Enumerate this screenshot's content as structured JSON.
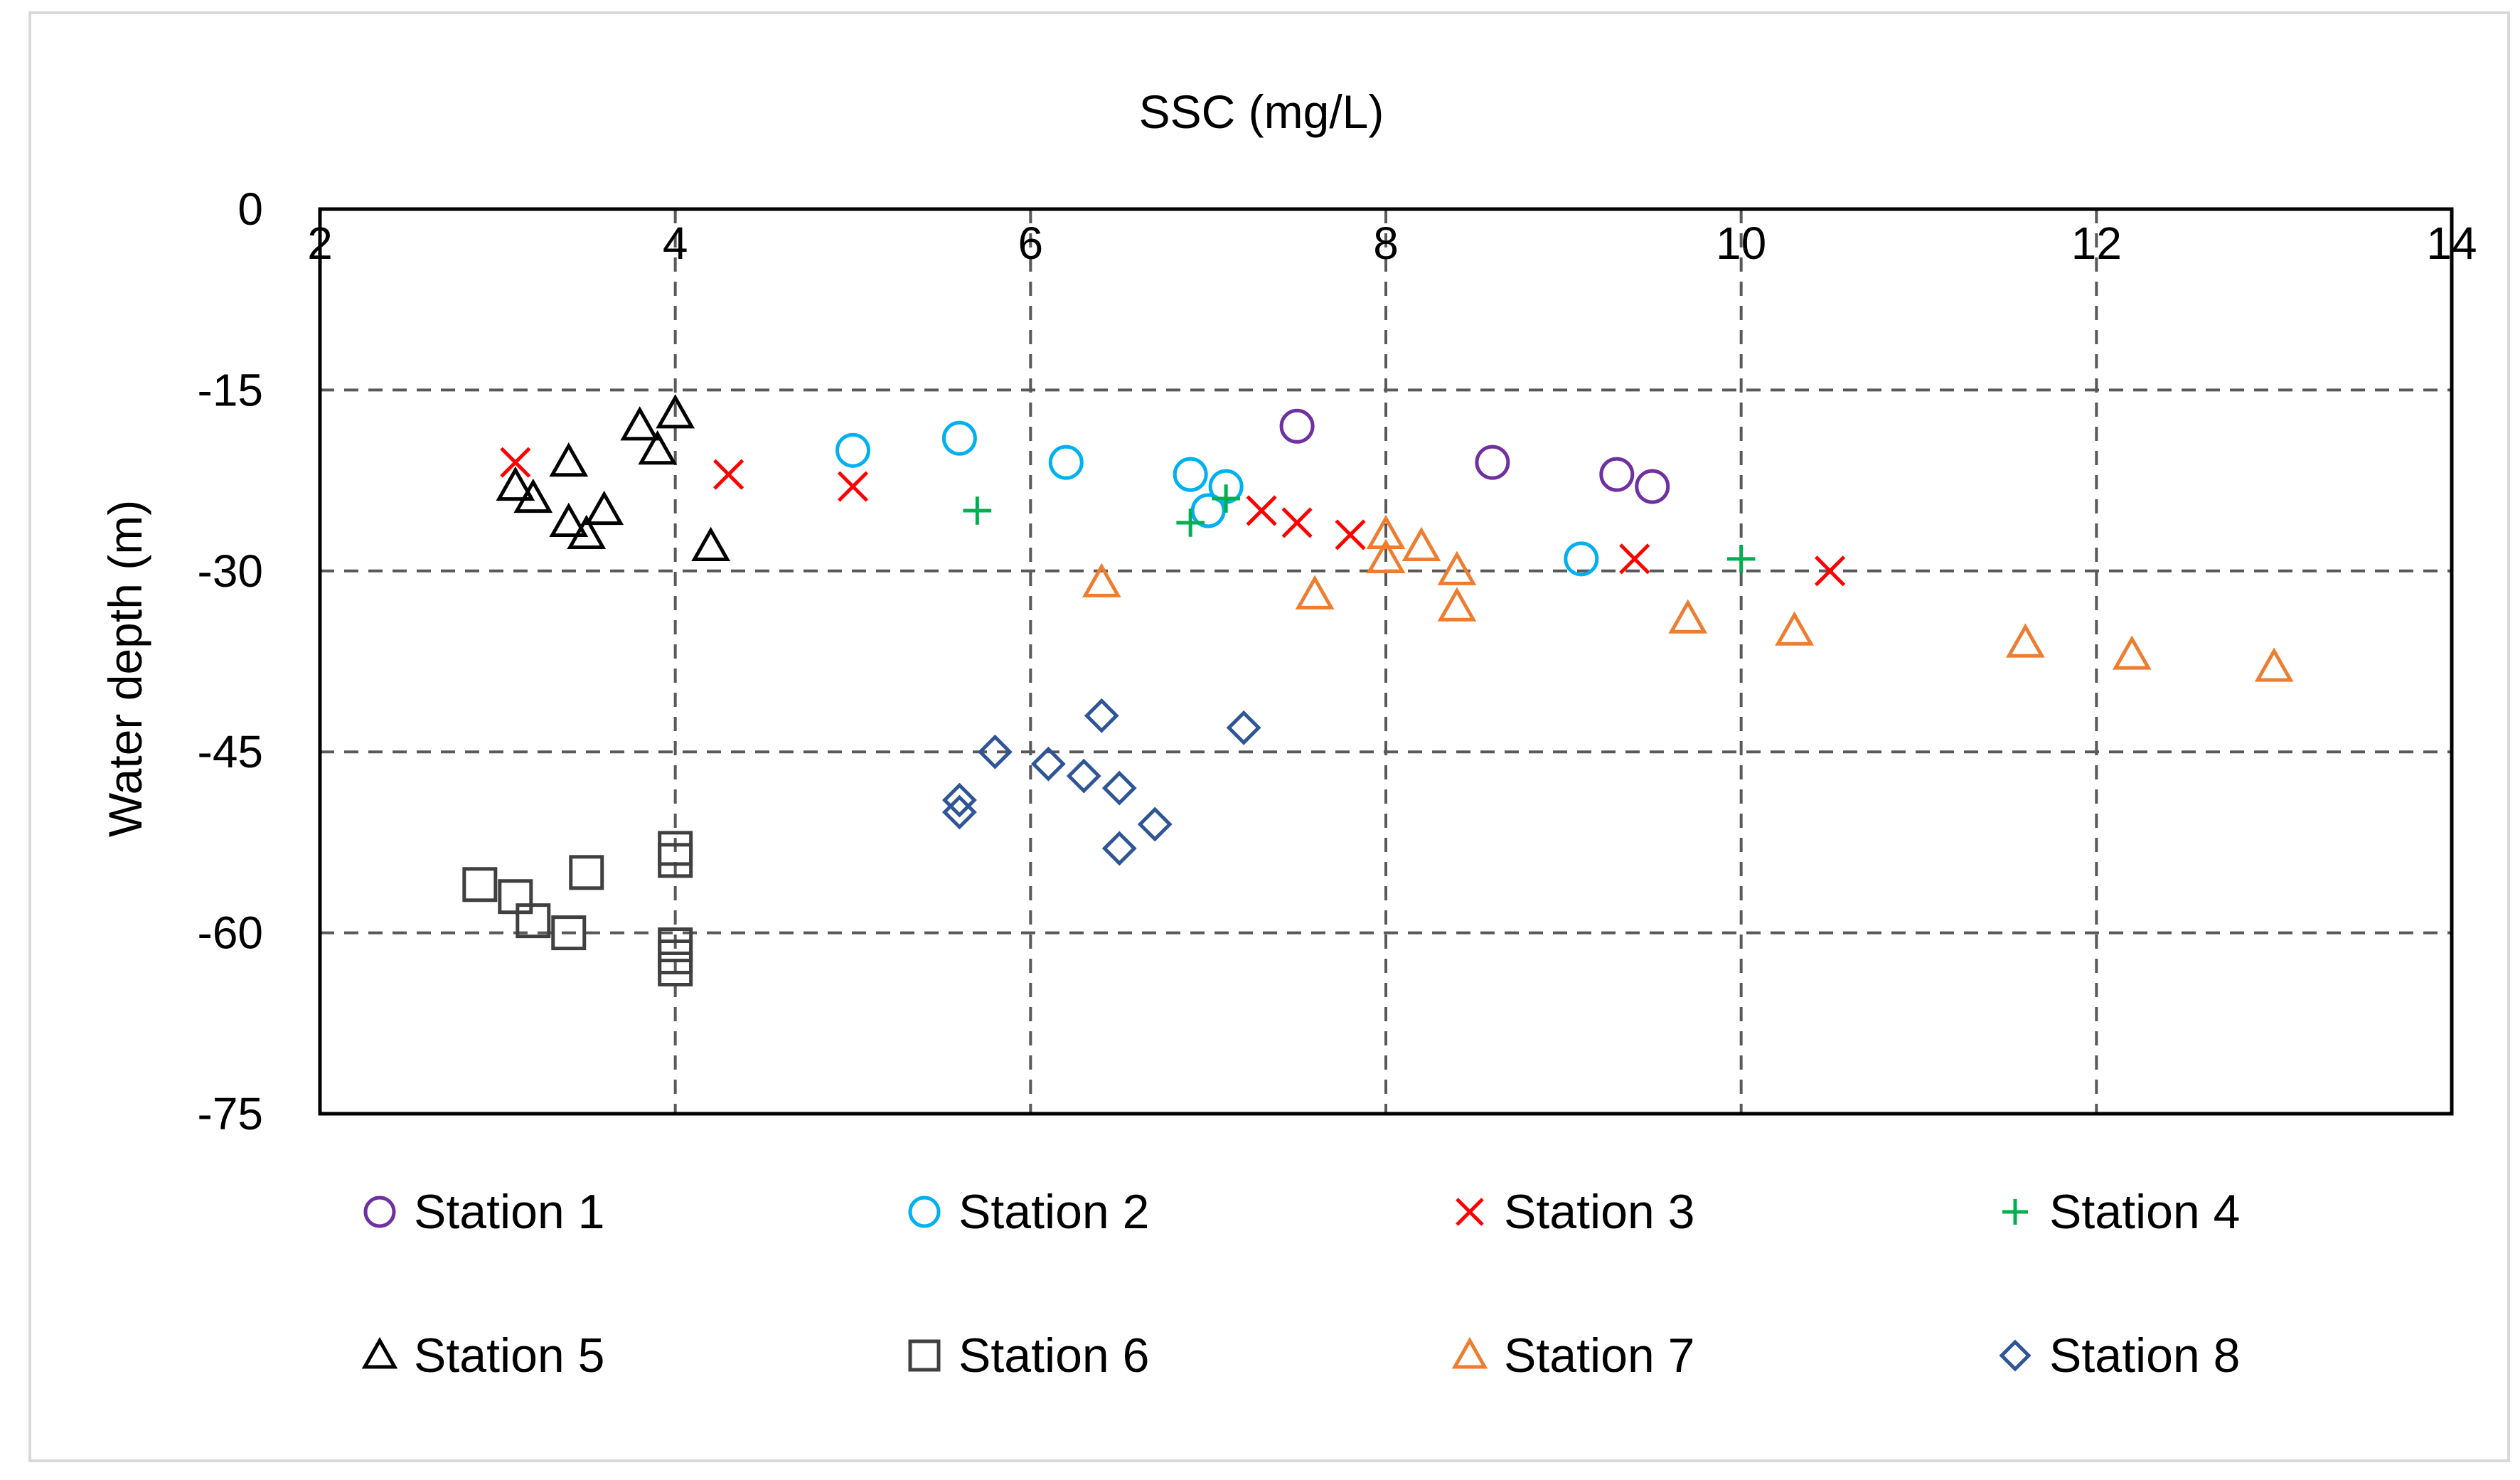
{
  "chart_data": {
    "type": "scatter",
    "title": "",
    "xlabel": "SSC (mg/L)",
    "ylabel": "Water depth (m)",
    "xlim": [
      2,
      14
    ],
    "ylim": [
      -75,
      0
    ],
    "xticks": [
      2,
      4,
      6,
      8,
      10,
      12,
      14
    ],
    "yticks": [
      0,
      -15,
      -30,
      -45,
      -60,
      -75
    ],
    "grid": true,
    "legend_position": "bottom",
    "series": [
      {
        "name": "Station 1",
        "marker": "circle",
        "color": "#7030a0",
        "points": [
          [
            7.5,
            -18
          ],
          [
            8.6,
            -21
          ],
          [
            9.3,
            -22
          ],
          [
            9.5,
            -23
          ]
        ]
      },
      {
        "name": "Station 2",
        "marker": "circle",
        "color": "#00b0f0",
        "points": [
          [
            5.0,
            -20
          ],
          [
            5.6,
            -19
          ],
          [
            6.2,
            -21
          ],
          [
            6.9,
            -22
          ],
          [
            7.0,
            -25
          ],
          [
            7.1,
            -23
          ],
          [
            9.1,
            -29
          ]
        ]
      },
      {
        "name": "Station 3",
        "marker": "x",
        "color": "#ff0000",
        "points": [
          [
            3.1,
            -21
          ],
          [
            4.3,
            -22
          ],
          [
            5.0,
            -23
          ],
          [
            7.3,
            -25
          ],
          [
            7.5,
            -26
          ],
          [
            7.8,
            -27
          ],
          [
            9.4,
            -29
          ],
          [
            10.5,
            -30
          ]
        ]
      },
      {
        "name": "Station 4",
        "marker": "plus",
        "color": "#00b050",
        "points": [
          [
            5.7,
            -25
          ],
          [
            6.9,
            -26
          ],
          [
            7.1,
            -24
          ],
          [
            10.0,
            -29
          ]
        ]
      },
      {
        "name": "Station 5",
        "marker": "triangle",
        "color": "#000000",
        "points": [
          [
            3.1,
            -23
          ],
          [
            3.2,
            -24
          ],
          [
            3.4,
            -21
          ],
          [
            3.4,
            -26
          ],
          [
            3.5,
            -27
          ],
          [
            3.6,
            -25
          ],
          [
            3.8,
            -18
          ],
          [
            3.9,
            -20
          ],
          [
            4.0,
            -17
          ],
          [
            4.2,
            -28
          ]
        ]
      },
      {
        "name": "Station 6",
        "marker": "square",
        "color": "#404040",
        "points": [
          [
            2.9,
            -56
          ],
          [
            3.1,
            -57
          ],
          [
            3.2,
            -59
          ],
          [
            3.4,
            -60
          ],
          [
            3.5,
            -55
          ],
          [
            4.0,
            -53
          ],
          [
            4.0,
            -54
          ],
          [
            4.0,
            -61
          ],
          [
            4.0,
            -62
          ],
          [
            4.0,
            -63
          ]
        ]
      },
      {
        "name": "Station 7",
        "marker": "triangle",
        "color": "#ed7d31",
        "points": [
          [
            6.4,
            -31
          ],
          [
            7.6,
            -32
          ],
          [
            8.0,
            -27
          ],
          [
            8.0,
            -29
          ],
          [
            8.2,
            -28
          ],
          [
            8.4,
            -30
          ],
          [
            8.4,
            -33
          ],
          [
            9.7,
            -34
          ],
          [
            10.3,
            -35
          ],
          [
            11.6,
            -36
          ],
          [
            12.2,
            -37
          ],
          [
            13.0,
            -38
          ]
        ]
      },
      {
        "name": "Station 8",
        "marker": "diamond",
        "color": "#2f5597",
        "points": [
          [
            5.6,
            -49
          ],
          [
            5.6,
            -50
          ],
          [
            5.8,
            -45
          ],
          [
            6.1,
            -46
          ],
          [
            6.3,
            -47
          ],
          [
            6.4,
            -42
          ],
          [
            6.5,
            -48
          ],
          [
            6.5,
            -53
          ],
          [
            6.7,
            -51
          ],
          [
            7.2,
            -43
          ]
        ]
      }
    ]
  }
}
